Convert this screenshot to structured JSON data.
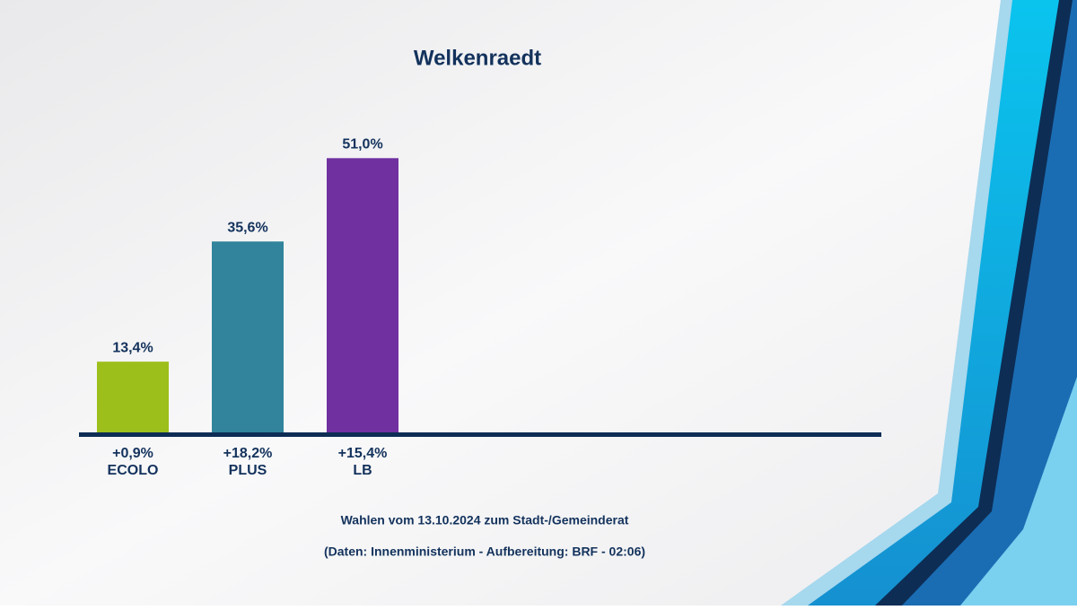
{
  "chart_data": {
    "type": "bar",
    "title": "Welkenraedt",
    "categories": [
      "ECOLO",
      "PLUS",
      "LB"
    ],
    "values": [
      13.4,
      35.6,
      51.0
    ],
    "value_labels": [
      "13,4%",
      "35,6%",
      "51,0%"
    ],
    "change_labels": [
      "+0,9%",
      "+18,2%",
      "+15,4%"
    ],
    "colors": [
      "#9dbf1c",
      "#31849b",
      "#7030a0"
    ],
    "ylim": [
      0,
      60
    ],
    "subtitle": "Wahlen vom 13.10.2024 zum Stadt-/Gemeinderat",
    "source": "(Daten: Innenministerium - Aufbereitung: BRF - 02:06)"
  }
}
